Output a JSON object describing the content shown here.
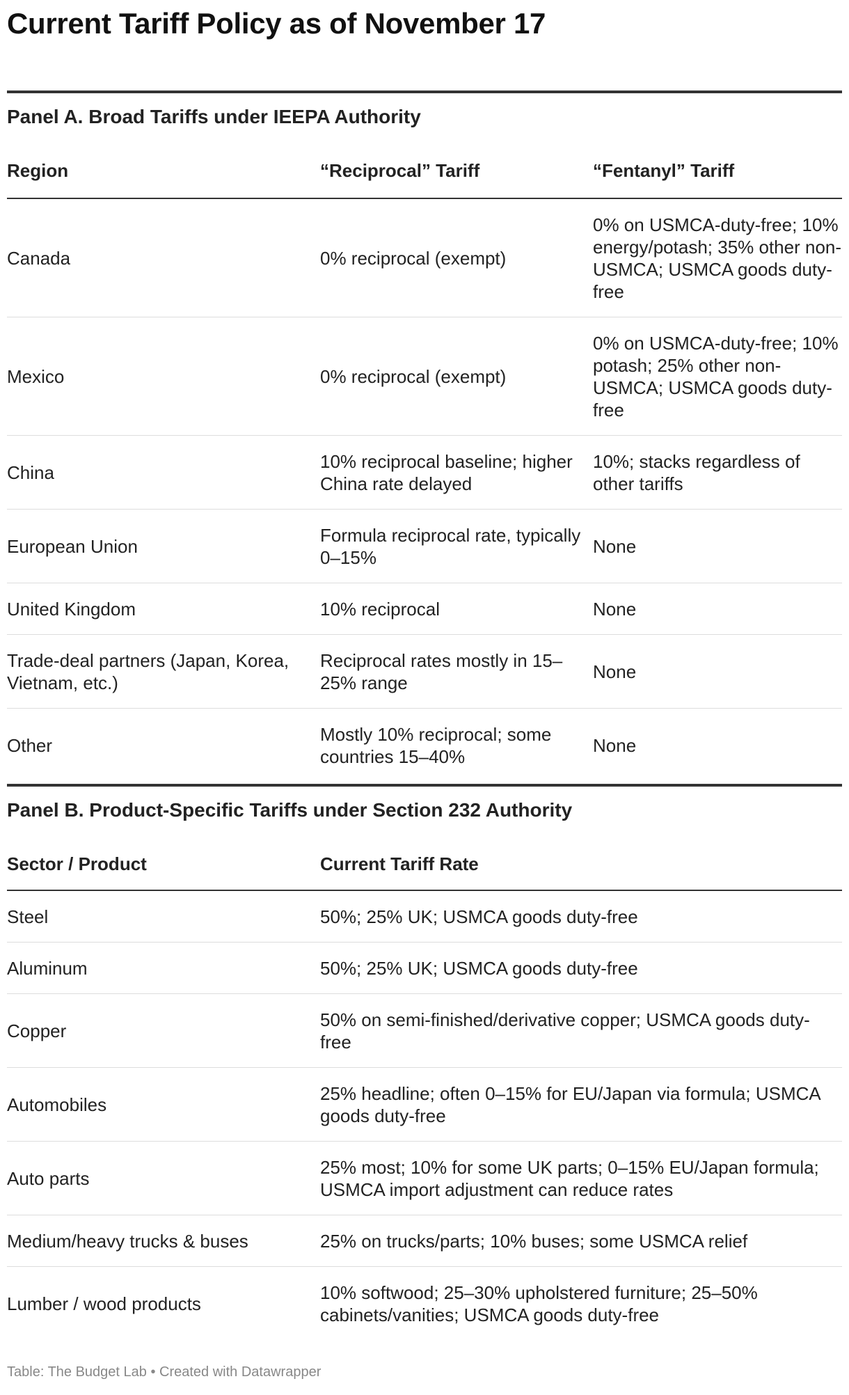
{
  "title": "Current Tariff Policy as of November 17",
  "panel_a": {
    "title": "Panel A. Broad Tariffs under IEEPA Authority",
    "headers": [
      "Region",
      "“Reciprocal” Tariff",
      "“Fentanyl” Tariff"
    ],
    "rows": [
      [
        "Canada",
        "0% reciprocal (exempt)",
        "0% on USMCA-duty-free; 10% energy/potash; 35% other non-USMCA; USMCA goods duty-free"
      ],
      [
        "Mexico",
        "0% reciprocal (exempt)",
        "0% on USMCA-duty-free; 10% potash; 25% other non-USMCA; USMCA goods duty-free"
      ],
      [
        "China",
        "10% reciprocal baseline; higher China rate delayed",
        "10%; stacks regardless of other tariffs"
      ],
      [
        "European Union",
        "Formula reciprocal rate, typically 0–15%",
        "None"
      ],
      [
        "United Kingdom",
        "10% reciprocal",
        "None"
      ],
      [
        "Trade-deal partners (Japan, Korea, Vietnam, etc.)",
        "Reciprocal rates mostly in 15–25% range",
        "None"
      ],
      [
        "Other",
        "Mostly 10% reciprocal; some countries 15–40%",
        "None"
      ]
    ]
  },
  "panel_b": {
    "title": "Panel B. Product-Specific Tariffs under Section 232 Authority",
    "headers": [
      "Sector / Product",
      "Current Tariff Rate"
    ],
    "rows": [
      [
        "Steel",
        "50%; 25% UK; USMCA goods duty-free"
      ],
      [
        "Aluminum",
        "50%; 25% UK; USMCA goods duty-free"
      ],
      [
        "Copper",
        "50% on semi-finished/derivative copper; USMCA goods duty-free"
      ],
      [
        "Automobiles",
        "25% headline; often 0–15% for EU/Japan via formula; USMCA goods duty-free"
      ],
      [
        "Auto parts",
        "25% most; 10% for some UK parts; 0–15% EU/Japan formula; USMCA import adjustment can reduce rates"
      ],
      [
        "Medium/heavy trucks & buses",
        "25% on trucks/parts; 10% buses; some USMCA relief"
      ],
      [
        "Lumber / wood products",
        "10% softwood; 25–30% upholstered furniture; 25–50% cabinets/vanities; USMCA goods duty-free"
      ]
    ]
  },
  "footer": "Table: The Budget Lab • Created with Datawrapper"
}
